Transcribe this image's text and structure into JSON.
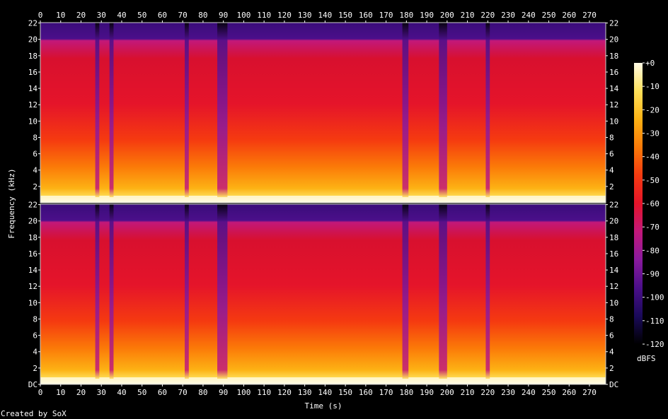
{
  "chart_data": {
    "type": "heatmap",
    "subtype": "spectrogram",
    "xlabel": "Time (s)",
    "ylabel": "Frequency (kHz)",
    "x_ticks": [
      0,
      10,
      20,
      30,
      40,
      50,
      60,
      70,
      80,
      90,
      100,
      110,
      120,
      130,
      140,
      150,
      160,
      170,
      180,
      190,
      200,
      210,
      220,
      230,
      240,
      250,
      260,
      270
    ],
    "xlim": [
      0,
      278
    ],
    "y_ticks": [
      {
        "value": 0,
        "label": "DC"
      },
      {
        "value": 2,
        "label": "2"
      },
      {
        "value": 4,
        "label": "4"
      },
      {
        "value": 6,
        "label": "6"
      },
      {
        "value": 8,
        "label": "8"
      },
      {
        "value": 10,
        "label": "10"
      },
      {
        "value": 12,
        "label": "12"
      },
      {
        "value": 14,
        "label": "14"
      },
      {
        "value": 16,
        "label": "16"
      },
      {
        "value": 18,
        "label": "18"
      },
      {
        "value": 20,
        "label": "20"
      },
      {
        "value": 22,
        "label": "22"
      }
    ],
    "ylim": [
      0,
      22.05
    ],
    "channels": 2,
    "colorbar": {
      "label": "dBFS",
      "ticks": [
        {
          "value": 0,
          "label": "+0"
        },
        {
          "value": -10,
          "label": "-10"
        },
        {
          "value": -20,
          "label": "-20"
        },
        {
          "value": -30,
          "label": "-30"
        },
        {
          "value": -40,
          "label": "-40"
        },
        {
          "value": -50,
          "label": "-50"
        },
        {
          "value": -60,
          "label": "-60"
        },
        {
          "value": -70,
          "label": "-70"
        },
        {
          "value": -80,
          "label": "-80"
        },
        {
          "value": -90,
          "label": "-90"
        },
        {
          "value": -100,
          "label": "-100"
        },
        {
          "value": -110,
          "label": "-110"
        },
        {
          "value": -120,
          "label": "-120"
        }
      ],
      "range": [
        -120,
        0
      ],
      "colors": [
        "#000000",
        "#1a0a5a",
        "#4b0f8a",
        "#8a1a9e",
        "#c2187a",
        "#e5142a",
        "#f53a10",
        "#fb7a08",
        "#fdb214",
        "#fee05a",
        "#fffbe6"
      ]
    },
    "quiet_segments": [
      [
        27,
        29
      ],
      [
        34,
        36
      ],
      [
        71,
        73
      ],
      [
        87,
        92
      ],
      [
        178,
        181
      ],
      [
        196,
        200
      ],
      [
        219,
        221
      ]
    ],
    "grid": false
  },
  "credit": "Created by SoX"
}
